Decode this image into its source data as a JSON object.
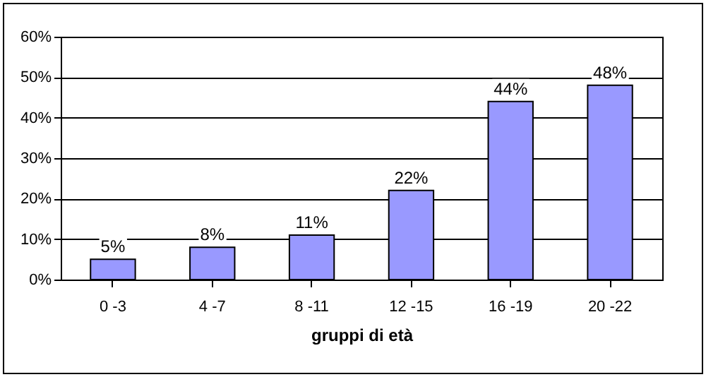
{
  "chart_data": {
    "type": "bar",
    "xlabel": "gruppi di età",
    "categories": [
      "0 -3",
      "4 -7",
      "8 -11",
      "12 -15",
      "16 -19",
      "20 -22"
    ],
    "values": [
      5,
      8,
      11,
      22,
      44,
      48
    ],
    "value_labels": [
      "5%",
      "8%",
      "11%",
      "22%",
      "44%",
      "48%"
    ],
    "color": "#9999ff",
    "ylim": [
      0,
      60
    ],
    "yticks": [
      {
        "value": 0,
        "label": "0%"
      },
      {
        "value": 10,
        "label": "10%"
      },
      {
        "value": 20,
        "label": "20%"
      },
      {
        "value": 30,
        "label": "30%"
      },
      {
        "value": 40,
        "label": "40%"
      },
      {
        "value": 50,
        "label": "50%"
      },
      {
        "value": 60,
        "label": "60%"
      }
    ],
    "grid": "y"
  }
}
